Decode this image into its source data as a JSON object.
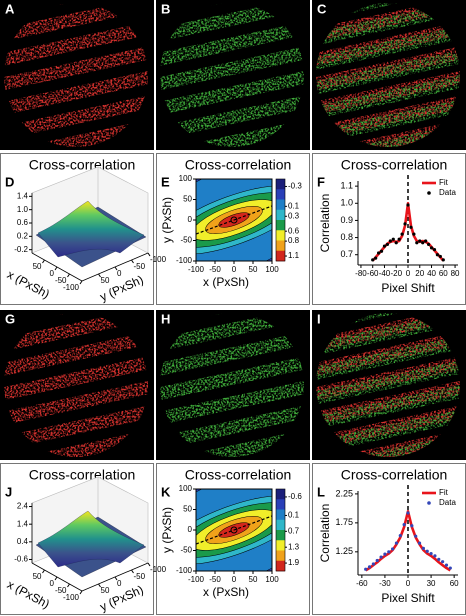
{
  "image_panels": [
    {
      "label": "A",
      "colors": [
        "#d8322e"
      ]
    },
    {
      "label": "B",
      "colors": [
        "#3fae3a"
      ]
    },
    {
      "label": "C",
      "colors": [
        "#d8322e",
        "#3fae3a"
      ]
    },
    {
      "label": "G",
      "colors": [
        "#d8322e"
      ]
    },
    {
      "label": "H",
      "colors": [
        "#3fae3a"
      ]
    },
    {
      "label": "I",
      "colors": [
        "#d8322e",
        "#3fae3a"
      ]
    }
  ],
  "chart_data": [
    {
      "type": "surface3d",
      "panel": "D",
      "title": "Cross-correlation",
      "xlabel": "x (PxSh)",
      "ylabel": "y (PxSh)",
      "xlim": [
        100,
        -100
      ],
      "xticks": [
        50,
        0,
        -50,
        -100
      ],
      "ylim": [
        100,
        -100
      ],
      "yticks": [
        50,
        0,
        -50,
        -100
      ],
      "zlim": [
        -0.3,
        1.5
      ],
      "zticks": [
        1.4,
        {
          "value": 1,
          "label": "1.0"
        },
        0.6,
        0.2,
        -0.2
      ],
      "colors": [
        "#f4e61e",
        "#5ec962",
        "#21918c",
        "#3b528b",
        "#2c2a8a"
      ]
    },
    {
      "type": "contour",
      "panel": "E",
      "title": "Cross-correlation",
      "xlabel": "x (PxSh)",
      "ylabel": "y (PxSh)",
      "xlim": [
        -100,
        100
      ],
      "xticks": [
        -100,
        -50,
        0,
        50,
        100
      ],
      "ylim": [
        -100,
        100
      ],
      "yticks": [
        -100,
        -50,
        0,
        50,
        100
      ],
      "clim": [
        -0.45,
        1.2
      ],
      "cticks": [
        -0.3,
        0.1,
        0.3,
        0.6,
        0.8,
        1.1
      ],
      "colors": [
        "#1b1f7a",
        "#2a3fb8",
        "#1f7fc7",
        "#2fb7c9",
        "#1a9a4a",
        "#f1ee2a",
        "#f0a21a",
        "#d2261c"
      ]
    },
    {
      "type": "line",
      "panel": "F",
      "title": "Cross-correlation",
      "xlabel": "Pixel Shift",
      "ylabel": "Correlation",
      "xlim": [
        -85,
        85
      ],
      "xticks": [
        -80,
        -60,
        -40,
        -20,
        0,
        20,
        40,
        60,
        80
      ],
      "ylim": [
        0.64,
        1.13
      ],
      "yticks": [
        0.7,
        0.8,
        0.9,
        {
          "value": 1,
          "label": "1.0"
        },
        1.1
      ],
      "x": [
        -60,
        -55,
        -50,
        -45,
        -40,
        -35,
        -30,
        -25,
        -20,
        -15,
        -10,
        -5,
        0,
        5,
        10,
        15,
        20,
        25,
        30,
        35,
        40,
        45,
        50,
        55,
        60
      ],
      "series": [
        {
          "name": "Fit",
          "color": "#e8141b",
          "marker": "line",
          "values": [
            0.665,
            0.685,
            0.705,
            0.725,
            0.745,
            0.765,
            0.775,
            0.78,
            0.775,
            0.78,
            0.81,
            0.87,
            1.0,
            0.87,
            0.81,
            0.78,
            0.775,
            0.78,
            0.775,
            0.765,
            0.745,
            0.725,
            0.705,
            0.685,
            0.665
          ]
        },
        {
          "name": "Data",
          "color": "#000000",
          "marker": "dot",
          "values": [
            0.67,
            0.68,
            0.71,
            0.72,
            0.75,
            0.76,
            0.78,
            0.79,
            0.77,
            0.79,
            0.82,
            0.88,
            0.99,
            0.86,
            0.82,
            0.77,
            0.78,
            0.77,
            0.78,
            0.76,
            0.74,
            0.73,
            0.7,
            0.69,
            0.67
          ]
        }
      ]
    },
    {
      "type": "surface3d",
      "panel": "J",
      "title": "Cross-correlation",
      "xlabel": "x (PxSh)",
      "ylabel": "y (PxSh)",
      "xlim": [
        100,
        -100
      ],
      "xticks": [
        50,
        0,
        -50,
        -100
      ],
      "ylim": [
        100,
        -100
      ],
      "yticks": [
        50,
        0,
        -50,
        -100
      ],
      "zlim": [
        -0.8,
        2.6
      ],
      "zticks": [
        2.4,
        1.4,
        0.4,
        -0.6
      ],
      "colors": [
        "#f4e61e",
        "#5ec962",
        "#21918c",
        "#3b528b",
        "#2c2a8a"
      ]
    },
    {
      "type": "contour",
      "panel": "K",
      "title": "Cross-correlation",
      "xlabel": "x (PxSh)",
      "ylabel": "y (PxSh)",
      "xlim": [
        -100,
        100
      ],
      "xticks": [
        -100,
        -50,
        0,
        50,
        100
      ],
      "ylim": [
        -100,
        100
      ],
      "yticks": [
        -100,
        -50,
        0,
        50,
        100
      ],
      "clim": [
        -0.9,
        2.2
      ],
      "cticks": [
        -0.6,
        0.1,
        0.7,
        1.3,
        1.9
      ],
      "colors": [
        "#1b1f7a",
        "#2a3fb8",
        "#1f7fc7",
        "#2fb7c9",
        "#1a9a4a",
        "#f1ee2a",
        "#f0a21a",
        "#d2261c"
      ]
    },
    {
      "type": "line",
      "panel": "L",
      "title": "Cross-correlation",
      "xlabel": "Pixel Shift",
      "ylabel": "Correlation",
      "xlim": [
        -65,
        65
      ],
      "xticks": [
        -60,
        -30,
        0,
        30,
        60
      ],
      "ylim": [
        0.85,
        2.3
      ],
      "yticks": [
        1.25,
        1.75,
        2.25
      ],
      "x": [
        -55,
        -50,
        -45,
        -40,
        -35,
        -30,
        -25,
        -20,
        -15,
        -10,
        -5,
        0,
        5,
        10,
        15,
        20,
        25,
        30,
        35,
        40,
        45,
        50,
        55
      ],
      "series": [
        {
          "name": "Fit",
          "color": "#e8141b",
          "marker": "line",
          "values": [
            0.93,
            0.97,
            1.02,
            1.07,
            1.13,
            1.18,
            1.22,
            1.28,
            1.38,
            1.5,
            1.68,
            1.95,
            1.68,
            1.5,
            1.38,
            1.28,
            1.22,
            1.18,
            1.13,
            1.07,
            1.02,
            0.97,
            0.93
          ]
        },
        {
          "name": "Data",
          "color": "#3346b8",
          "marker": "dot",
          "values": [
            0.95,
            0.99,
            1.04,
            1.1,
            1.16,
            1.21,
            1.25,
            1.3,
            1.4,
            1.53,
            1.72,
            1.92,
            1.7,
            1.52,
            1.4,
            1.31,
            1.26,
            1.22,
            1.18,
            1.12,
            1.08,
            1.02,
            0.97
          ]
        }
      ]
    }
  ]
}
